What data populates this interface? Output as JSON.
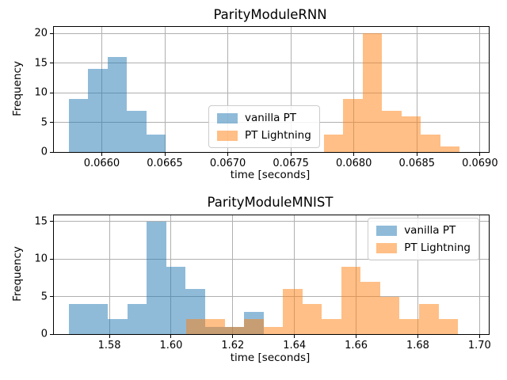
{
  "colors": {
    "vanilla_pt_base": "#1f77b4",
    "pt_lightning_base": "#ff7f0e",
    "fill_alpha": 0.5,
    "grid": "#b0b0b0",
    "spine": "#000000",
    "background": "#ffffff",
    "legend_border": "#cccccc"
  },
  "legend": {
    "entries": [
      {
        "label": "vanilla PT",
        "series": "vanilla_pt"
      },
      {
        "label": "PT Lightning",
        "series": "pt_lightning"
      }
    ]
  },
  "chart_data": [
    {
      "type": "bar",
      "mode": "histogram",
      "title": "ParityModuleRNN",
      "xlabel": "time [seconds]",
      "ylabel": "Frequency",
      "xlim": [
        0.06562,
        0.06907
      ],
      "ylim": [
        0,
        21.07
      ],
      "grid": true,
      "legend_position": "center",
      "xtick_values": [
        0.066,
        0.0665,
        0.067,
        0.0675,
        0.068,
        0.0685,
        0.069
      ],
      "xtick_labels": [
        "0.0660",
        "0.0665",
        "0.0670",
        "0.0675",
        "0.0680",
        "0.0685",
        "0.0690"
      ],
      "ytick_values": [
        0,
        5,
        10,
        15,
        20
      ],
      "ytick_labels": [
        "0",
        "5",
        "10",
        "15",
        "20"
      ],
      "series": [
        {
          "name": "vanilla PT",
          "color_key": "vanilla_pt_base",
          "bin_start": 0.065737,
          "bin_width": 0.000154,
          "counts": [
            9,
            14,
            16,
            7,
            3
          ]
        },
        {
          "name": "PT Lightning",
          "color_key": "pt_lightning_base",
          "bin_start": 0.067762,
          "bin_width": 0.000154,
          "counts": [
            3,
            9,
            20,
            7,
            6,
            3,
            1
          ]
        }
      ]
    },
    {
      "type": "bar",
      "mode": "histogram",
      "title": "ParityModuleMNIST",
      "xlabel": "time [seconds]",
      "ylabel": "Frequency",
      "xlim": [
        1.562,
        1.703
      ],
      "ylim": [
        0,
        15.79
      ],
      "grid": true,
      "legend_position": "upper right",
      "xtick_values": [
        1.58,
        1.6,
        1.62,
        1.64,
        1.66,
        1.68,
        1.7
      ],
      "xtick_labels": [
        "1.58",
        "1.60",
        "1.62",
        "1.64",
        "1.66",
        "1.68",
        "1.70"
      ],
      "ytick_values": [
        0,
        5,
        10,
        15
      ],
      "ytick_labels": [
        "0",
        "5",
        "10",
        "15"
      ],
      "series": [
        {
          "name": "vanilla PT",
          "color_key": "vanilla_pt_base",
          "bin_start": 1.5669,
          "bin_width": 0.00631,
          "counts": [
            4,
            4,
            2,
            4,
            15,
            9,
            6,
            1,
            1,
            3
          ]
        },
        {
          "name": "PT Lightning",
          "color_key": "pt_lightning_base",
          "bin_start": 1.6048,
          "bin_width": 0.0063,
          "counts": [
            2,
            2,
            1,
            2,
            1,
            6,
            4,
            2,
            9,
            7,
            5,
            2,
            4,
            2
          ]
        }
      ]
    }
  ]
}
